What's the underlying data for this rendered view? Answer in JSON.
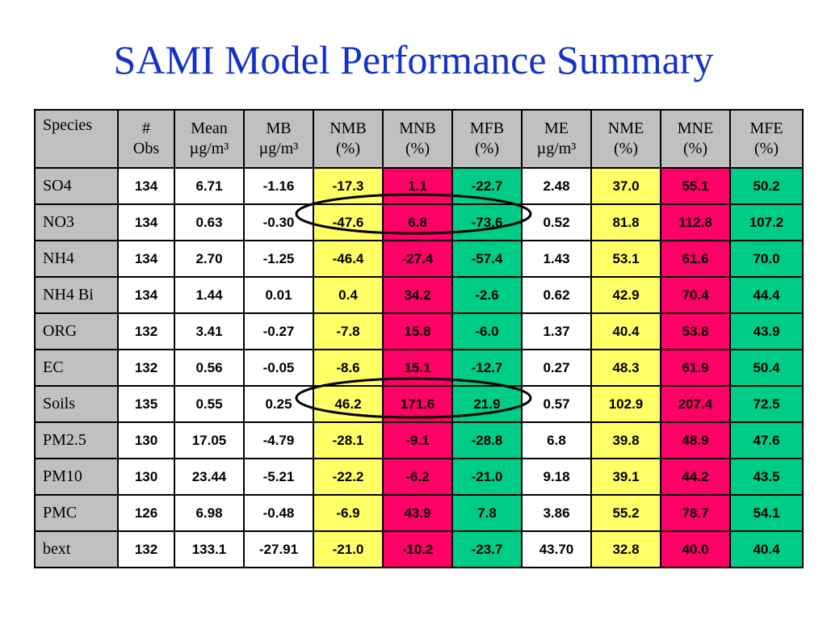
{
  "title": "SAMI Model Performance Summary",
  "columns": [
    {
      "line1": "Species",
      "line2": ""
    },
    {
      "line1": "#",
      "line2": "Obs"
    },
    {
      "line1": "Mean",
      "line2": "µg/m³"
    },
    {
      "line1": "MB",
      "line2": "µg/m³"
    },
    {
      "line1": "NMB",
      "line2": "(%)"
    },
    {
      "line1": "MNB",
      "line2": "(%)"
    },
    {
      "line1": "MFB",
      "line2": "(%)"
    },
    {
      "line1": "ME",
      "line2": "µg/m³"
    },
    {
      "line1": "NME",
      "line2": "(%)"
    },
    {
      "line1": "MNE",
      "line2": "(%)"
    },
    {
      "line1": "MFE",
      "line2": "(%)"
    }
  ],
  "column_colors": [
    "",
    "",
    "",
    "",
    "#ffff66",
    "#ff0066",
    "#00cc8a",
    "",
    "#ffff66",
    "#ff0066",
    "#00cc8a"
  ],
  "rows": [
    [
      "SO4",
      "134",
      "6.71",
      "-1.16",
      "-17.3",
      "1.1",
      "-22.7",
      "2.48",
      "37.0",
      "55.1",
      "50.2"
    ],
    [
      "NO3",
      "134",
      "0.63",
      "-0.30",
      "-47.6",
      "6.8",
      "-73.6",
      "0.52",
      "81.8",
      "112.8",
      "107.2"
    ],
    [
      "NH4",
      "134",
      "2.70",
      "-1.25",
      "-46.4",
      "-27.4",
      "-57.4",
      "1.43",
      "53.1",
      "61.6",
      "70.0"
    ],
    [
      "NH4 Bi",
      "134",
      "1.44",
      "0.01",
      "0.4",
      "34.2",
      "-2.6",
      "0.62",
      "42.9",
      "70.4",
      "44.4"
    ],
    [
      "ORG",
      "132",
      "3.41",
      "-0.27",
      "-7.8",
      "15.8",
      "-6.0",
      "1.37",
      "40.4",
      "53.8",
      "43.9"
    ],
    [
      "EC",
      "132",
      "0.56",
      "-0.05",
      "-8.6",
      "15.1",
      "-12.7",
      "0.27",
      "48.3",
      "61.9",
      "50.4"
    ],
    [
      "Soils",
      "135",
      "0.55",
      "0.25",
      "46.2",
      "171.6",
      "21.9",
      "0.57",
      "102.9",
      "207.4",
      "72.5"
    ],
    [
      "PM2.5",
      "130",
      "17.05",
      "-4.79",
      "-28.1",
      "-9.1",
      "-28.8",
      "6.8",
      "39.8",
      "48.9",
      "47.6"
    ],
    [
      "PM10",
      "130",
      "23.44",
      "-5.21",
      "-22.2",
      "-6.2",
      "-21.0",
      "9.18",
      "39.1",
      "44.2",
      "43.5"
    ],
    [
      "PMC",
      "126",
      "6.98",
      "-0.48",
      "-6.9",
      "43.9",
      "7.8",
      "3.86",
      "55.2",
      "78.7",
      "54.1"
    ],
    [
      "bext",
      "132",
      "133.1",
      "-27.91",
      "-21.0",
      "-10.2",
      "-23.7",
      "43.70",
      "32.8",
      "40.0",
      "40.4"
    ]
  ],
  "highlighted_rows": [
    "NO3",
    "Soils"
  ]
}
